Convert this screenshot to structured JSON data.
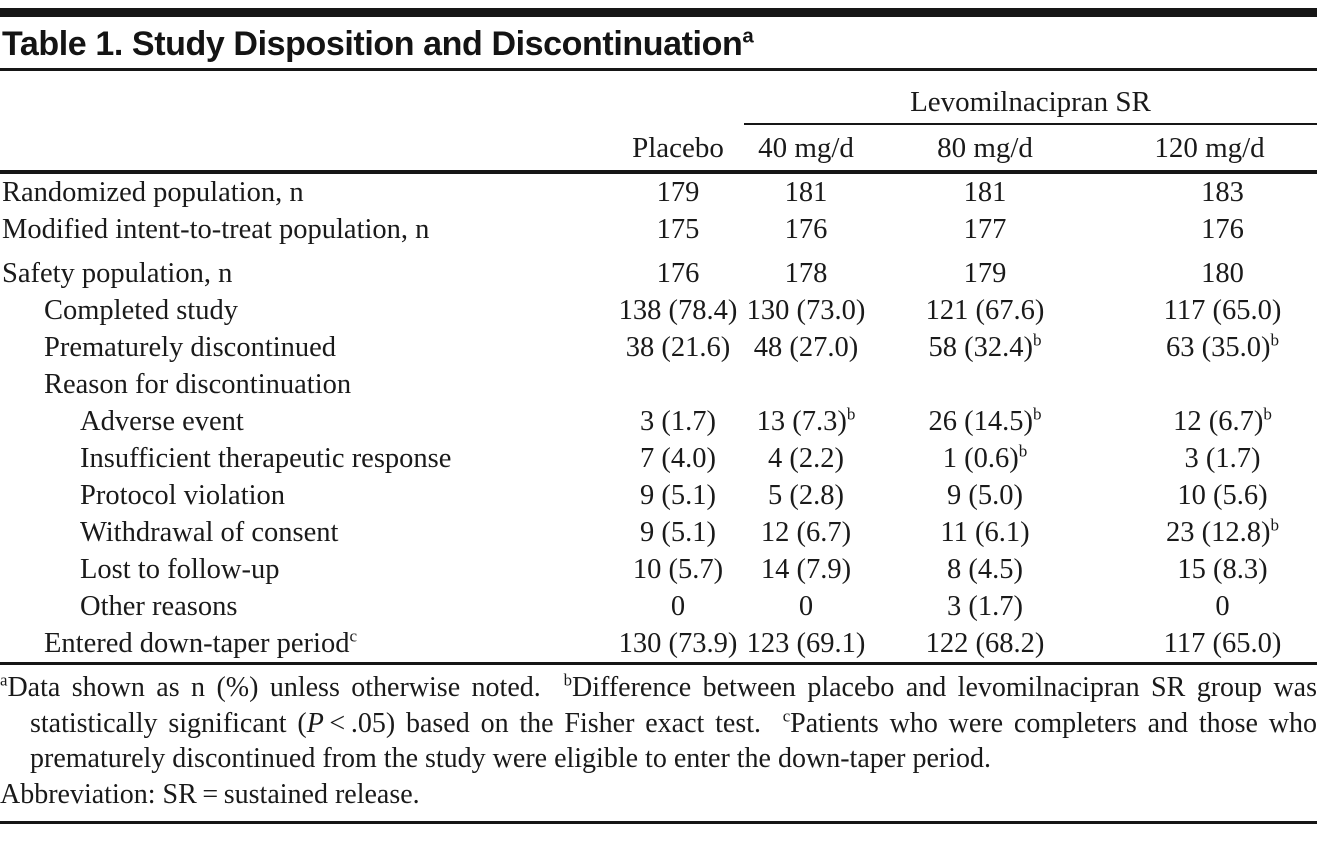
{
  "title": {
    "text": "Table 1. Study Disposition and Discontinuation",
    "sup": "a"
  },
  "header": {
    "spanner": "Levomilnacipran SR",
    "columns": [
      "Placebo",
      "40 mg/d",
      "80 mg/d",
      "120 mg/d"
    ]
  },
  "rows": [
    {
      "label": "Randomized population, n",
      "indent": 0,
      "cells": [
        "179",
        "181",
        "181",
        "183"
      ]
    },
    {
      "label": "Modified intent-to-treat population, n",
      "indent": 0,
      "cells": [
        "175",
        "176",
        "177",
        "176"
      ]
    },
    {
      "label": "Safety population, n",
      "indent": 0,
      "gap_before": true,
      "cells": [
        "176",
        "178",
        "179",
        "180"
      ]
    },
    {
      "label": "Completed study",
      "indent": 1,
      "cells": [
        "138 (78.4)",
        "130 (73.0)",
        "121 (67.6)",
        "117 (65.0)"
      ]
    },
    {
      "label": "Prematurely discontinued",
      "indent": 1,
      "cells": [
        "38 (21.6)",
        "48 (27.0)",
        {
          "t": "58 (32.4)",
          "sup": "b"
        },
        {
          "t": "63 (35.0)",
          "sup": "b"
        }
      ]
    },
    {
      "label": "Reason for discontinuation",
      "indent": 1,
      "cells": [
        "",
        "",
        "",
        ""
      ]
    },
    {
      "label": "Adverse event",
      "indent": 2,
      "cells": [
        "3 (1.7)",
        {
          "t": "13 (7.3)",
          "sup": "b"
        },
        {
          "t": "26 (14.5)",
          "sup": "b"
        },
        {
          "t": "12 (6.7)",
          "sup": "b"
        }
      ]
    },
    {
      "label": "Insufficient therapeutic response",
      "indent": 2,
      "cells": [
        "7 (4.0)",
        "4 (2.2)",
        {
          "t": "1 (0.6)",
          "sup": "b"
        },
        "3 (1.7)"
      ]
    },
    {
      "label": "Protocol violation",
      "indent": 2,
      "cells": [
        "9 (5.1)",
        "5 (2.8)",
        "9 (5.0)",
        "10 (5.6)"
      ]
    },
    {
      "label": "Withdrawal of consent",
      "indent": 2,
      "cells": [
        "9 (5.1)",
        "12 (6.7)",
        "11 (6.1)",
        {
          "t": "23 (12.8)",
          "sup": "b"
        }
      ]
    },
    {
      "label": "Lost to follow-up",
      "indent": 2,
      "cells": [
        "10 (5.7)",
        "14 (7.9)",
        "8 (4.5)",
        "15 (8.3)"
      ]
    },
    {
      "label": "Other reasons",
      "indent": 2,
      "cells": [
        "0",
        "0",
        "3 (1.7)",
        "0"
      ]
    },
    {
      "label": "Entered down-taper period",
      "label_sup": "c",
      "indent": 1,
      "cells": [
        "130 (73.9)",
        "123 (69.1)",
        "122 (68.2)",
        "117 (65.0)"
      ]
    }
  ],
  "footnotes": {
    "segments": [
      {
        "t": "a",
        "sup": true
      },
      {
        "t": "Data shown as n (%) unless otherwise noted.  "
      },
      {
        "t": "b",
        "sup": true
      },
      {
        "t": "Difference between placebo and levomilnacipran SR group was statistically significant ("
      },
      {
        "t": "P",
        "i": true
      },
      {
        "t": " < .05) based on the Fisher exact test.  "
      },
      {
        "t": "c",
        "sup": true
      },
      {
        "t": "Patients who were completers and those who prematurely discontinued from the study were eligible to enter the down-taper period."
      }
    ],
    "abbreviation": "Abbreviation: SR = sustained release."
  },
  "colors": {
    "ink": "#1a1a1a",
    "rule": "#161616",
    "background": "#ffffff"
  }
}
